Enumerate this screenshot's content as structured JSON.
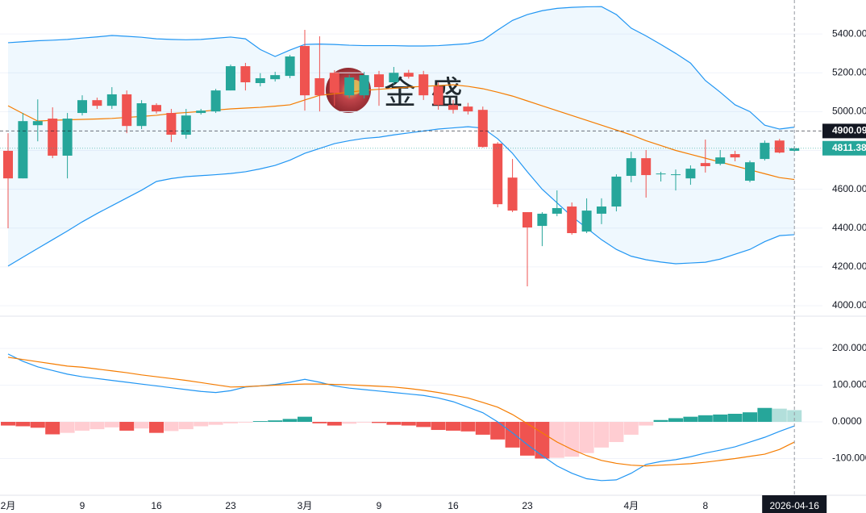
{
  "chart_data": {
    "type": "candlestick",
    "watermark": "金盛",
    "categories": [
      "2月",
      null,
      null,
      null,
      null,
      "9",
      null,
      null,
      null,
      null,
      "16",
      null,
      null,
      null,
      null,
      "23",
      null,
      null,
      null,
      null,
      "3月",
      null,
      null,
      null,
      null,
      "9",
      null,
      null,
      null,
      null,
      "16",
      null,
      null,
      null,
      null,
      "23",
      null,
      null,
      null,
      null,
      null,
      null,
      "4月",
      null,
      null,
      null,
      null,
      "8",
      null,
      null,
      null,
      null,
      null,
      null
    ],
    "crosshair": {
      "label": "2026-04-16"
    },
    "open": [
      4798,
      4656,
      4930,
      4964,
      4773,
      4993,
      5059,
      5030,
      5089,
      4926,
      5034,
      4993,
      4881,
      4993,
      5001,
      5109,
      5234,
      5147,
      5167,
      5184,
      5338,
      5172,
      5200,
      5084,
      5084,
      5192,
      5151,
      5200,
      5192,
      5130,
      5034,
      5026,
      5009,
      4835,
      4660,
      4482,
      4411,
      4474,
      4511,
      4382,
      4474,
      4511,
      4669,
      4760,
      4677,
      4673,
      4656,
      4735,
      4731,
      4781,
      4644,
      4756,
      4851,
      4798
    ],
    "high": [
      4889,
      4993,
      5063,
      5022,
      4993,
      5084,
      5072,
      5126,
      5109,
      5059,
      5043,
      5014,
      5014,
      5014,
      5117,
      5242,
      5251,
      5198,
      5205,
      5292,
      5421,
      5388,
      5213,
      5190,
      5204,
      5210,
      5230,
      5215,
      5210,
      5150,
      5060,
      5045,
      5026,
      4843,
      4756,
      4482,
      4482,
      4594,
      4532,
      4553,
      4553,
      4677,
      4793,
      4802,
      4690,
      4702,
      4723,
      4856,
      4802,
      4798,
      4748,
      4851,
      4860,
      4822
    ],
    "low": [
      4399,
      4656,
      4847,
      4760,
      4656,
      4980,
      5014,
      5014,
      4889,
      4910,
      4990,
      4843,
      4860,
      4985,
      4993,
      5109,
      5109,
      5130,
      5155,
      5172,
      5005,
      5001,
      5030,
      5070,
      5068,
      5030,
      5140,
      5170,
      5060,
      5010,
      4990,
      4985,
      4814,
      4507,
      4482,
      4100,
      4307,
      4461,
      4366,
      4374,
      4420,
      4486,
      4636,
      4557,
      4640,
      4594,
      4623,
      4686,
      4723,
      4744,
      4636,
      4748,
      4785,
      4793
    ],
    "close": [
      4656,
      4951,
      4951,
      4773,
      4964,
      5059,
      5030,
      5089,
      4926,
      5043,
      5001,
      4881,
      4980,
      5005,
      5109,
      5234,
      5151,
      5172,
      5188,
      5284,
      5084,
      5084,
      5097,
      5176,
      5188,
      5126,
      5200,
      5180,
      5084,
      5034,
      5009,
      5001,
      4818,
      4523,
      4490,
      4403,
      4474,
      4503,
      4374,
      4490,
      4511,
      4665,
      4760,
      4673,
      4681,
      4677,
      4706,
      4719,
      4764,
      4764,
      4739,
      4839,
      4789,
      4811
    ],
    "up_color": "#26a69a",
    "down_color": "#ef5350",
    "ylim": [
      3946,
      5575
    ],
    "yticks": [
      {
        "value": 4000,
        "label": "4000.00"
      },
      {
        "value": 4200,
        "label": "4200.00"
      },
      {
        "value": 4400,
        "label": "4400.00"
      },
      {
        "value": 4600,
        "label": "4600.00"
      },
      {
        "value": 4800,
        "label": "4800.00"
      },
      {
        "value": 5000,
        "label": "5000.00"
      },
      {
        "value": 5200,
        "label": "5200.00"
      },
      {
        "value": 5400,
        "label": "5400.00"
      }
    ],
    "grid": true,
    "bollinger": {
      "upper_color": "#2196f3",
      "middle_color": "#f57c00",
      "lower_color": "#2196f3",
      "fill": "rgba(33,150,243,0.07)",
      "upper": [
        5355,
        5360,
        5365,
        5368,
        5372,
        5379,
        5385,
        5392,
        5388,
        5383,
        5375,
        5372,
        5370,
        5372,
        5378,
        5384,
        5375,
        5320,
        5284,
        5317,
        5346,
        5348,
        5346,
        5342,
        5340,
        5340,
        5340,
        5338,
        5338,
        5340,
        5345,
        5350,
        5367,
        5420,
        5470,
        5500,
        5520,
        5532,
        5537,
        5540,
        5541,
        5500,
        5430,
        5390,
        5346,
        5300,
        5250,
        5160,
        5100,
        5035,
        5000,
        4930,
        4910,
        4920
      ],
      "middle": [
        5030,
        4990,
        4951,
        4955,
        4958,
        4960,
        4962,
        4965,
        4970,
        4975,
        4981,
        4990,
        4995,
        5001,
        5008,
        5014,
        5018,
        5022,
        5028,
        5035,
        5060,
        5084,
        5092,
        5100,
        5109,
        5115,
        5120,
        5126,
        5130,
        5134,
        5138,
        5130,
        5118,
        5100,
        5080,
        5055,
        5030,
        5005,
        4980,
        4955,
        4930,
        4905,
        4880,
        4850,
        4825,
        4800,
        4780,
        4760,
        4740,
        4720,
        4700,
        4680,
        4660,
        4650
      ],
      "lower": [
        4204,
        4250,
        4295,
        4340,
        4385,
        4432,
        4475,
        4515,
        4555,
        4595,
        4640,
        4655,
        4665,
        4670,
        4675,
        4681,
        4690,
        4705,
        4723,
        4750,
        4785,
        4810,
        4835,
        4850,
        4862,
        4868,
        4880,
        4890,
        4900,
        4910,
        4916,
        4922,
        4915,
        4860,
        4785,
        4690,
        4600,
        4530,
        4460,
        4400,
        4340,
        4290,
        4255,
        4237,
        4225,
        4216,
        4220,
        4224,
        4240,
        4265,
        4290,
        4330,
        4361,
        4366
      ]
    },
    "price_lines": [
      {
        "value": 4900.09,
        "color": "#131722"
      },
      {
        "value": 4811.38,
        "color": "#26a69a"
      }
    ],
    "macd": {
      "ylim": [
        -200,
        288
      ],
      "yticks": [
        {
          "value": -100,
          "label": "-100.000"
        },
        {
          "value": 0,
          "label": "0.0000"
        },
        {
          "value": 100,
          "label": "100.000"
        },
        {
          "value": 200,
          "label": "200.000"
        }
      ],
      "dif_color": "#2196f3",
      "dea_color": "#f57c00",
      "hist_colors": {
        "up_strong": "#26a69a",
        "up_weak": "#b2dfdb",
        "down_strong": "#ef5350",
        "down_weak": "#ffcdd2"
      },
      "dif": [
        185,
        165,
        150,
        140,
        130,
        123,
        118,
        113,
        108,
        103,
        98,
        93,
        88,
        83,
        80,
        85,
        95,
        98,
        102,
        108,
        116,
        108,
        98,
        92,
        88,
        84,
        80,
        76,
        72,
        65,
        55,
        40,
        25,
        0,
        -30,
        -62,
        -92,
        -120,
        -140,
        -155,
        -160,
        -158,
        -140,
        -116,
        -108,
        -103,
        -95,
        -85,
        -77,
        -68,
        -55,
        -42,
        -26,
        -11
      ],
      "dea": [
        176,
        170,
        164,
        158,
        152,
        149,
        144,
        139,
        134,
        128,
        123,
        118,
        113,
        107,
        101,
        95,
        96,
        98,
        100,
        102,
        103,
        103,
        102,
        101,
        99,
        97,
        95,
        91,
        86,
        80,
        73,
        65,
        53,
        40,
        20,
        -5,
        -30,
        -55,
        -75,
        -92,
        -105,
        -113,
        -118,
        -120,
        -118,
        -116,
        -114,
        -110,
        -105,
        -100,
        -94,
        -88,
        -75,
        -55
      ],
      "hist": [
        -10,
        -12,
        -16,
        -34,
        -30,
        -24,
        -20,
        -15,
        -24,
        -18,
        -30,
        -25,
        -20,
        -12,
        -8,
        -4,
        -2,
        2,
        4,
        8,
        14,
        -4,
        -10,
        -5,
        -2,
        -3,
        -8,
        -10,
        -14,
        -22,
        -24,
        -26,
        -35,
        -48,
        -70,
        -92,
        -100,
        -98,
        -95,
        -85,
        -70,
        -55,
        -35,
        -10,
        5,
        10,
        14,
        18,
        20,
        22,
        26,
        38,
        36,
        32
      ]
    }
  }
}
